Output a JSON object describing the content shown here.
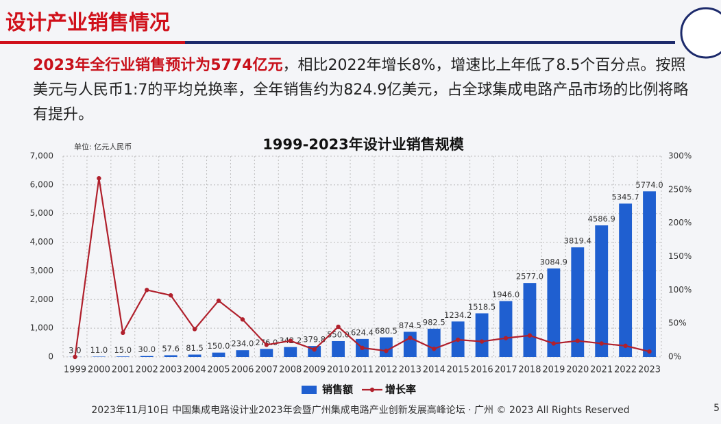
{
  "header": {
    "title": "设计产业销售情况"
  },
  "summary": {
    "highlight": "2023年全行业销售预计为5774亿元",
    "text": "，相比2022年增长8%，增速比上年低了8.5个百分点。按照美元与人民币1:7的平均兑换率，全年销售约为824.9亿美元，占全球集成电路产品市场的比例将略有提升。"
  },
  "chart_data": {
    "type": "bar",
    "title": "1999-2023年设计业销售规模",
    "unit_note": "单位: 亿元人民币",
    "categories": [
      "1999",
      "2000",
      "2001",
      "2002",
      "2003",
      "2004",
      "2005",
      "2006",
      "2007",
      "2008",
      "2009",
      "2010",
      "2011",
      "2012",
      "2013",
      "2014",
      "2015",
      "2016",
      "2017",
      "2018",
      "2019",
      "2020",
      "2021",
      "2022",
      "2023"
    ],
    "series": [
      {
        "name": "销售额",
        "type": "bar",
        "color": "#1f5fd0",
        "values": [
          3,
          11,
          15,
          30,
          57.6,
          81.5,
          150,
          234,
          276,
          342.2,
          379.8,
          550,
          624.4,
          680.5,
          874.5,
          982.5,
          1234.2,
          1518.5,
          1946,
          2577,
          3084.9,
          3819.4,
          4586.9,
          5345.7,
          5774
        ],
        "value_labels": [
          "3.0",
          "11.0",
          "15.0",
          "30.0",
          "57.6",
          "81.5",
          "150.0",
          "234.0",
          "276.0",
          "342.2",
          "379.8",
          "550.0",
          "624.4",
          "680.5",
          "874.5",
          "982.5",
          "1234.2",
          "1518.5",
          "1946.0",
          "2577.0",
          "3084.9",
          "3819.4",
          "4586.9",
          "5345.7",
          "5774.0"
        ]
      },
      {
        "name": "增长率",
        "type": "line",
        "axis": "y2",
        "color": "#b0202c",
        "values": [
          0,
          267,
          36,
          100,
          92,
          41.5,
          84,
          56,
          18,
          24,
          11,
          45,
          13.5,
          9,
          28.5,
          12,
          25.6,
          23,
          28,
          32,
          20,
          24,
          20,
          16.5,
          8
        ]
      }
    ],
    "ylim": [
      0,
      7000
    ],
    "yticks": [
      0,
      {
        "value": 1000,
        "label": "1,000"
      },
      {
        "value": 2000,
        "label": "2,000"
      },
      {
        "value": 3000,
        "label": "3,000"
      },
      {
        "value": 4000,
        "label": "4,000"
      },
      {
        "value": 5000,
        "label": "5,000"
      },
      {
        "value": 6000,
        "label": "6,000"
      },
      {
        "value": 7000,
        "label": "7,000"
      }
    ],
    "y2lim": [
      0,
      300
    ],
    "y2ticks": [
      {
        "value": 0,
        "label": "0%"
      },
      {
        "value": 50,
        "label": "50%"
      },
      {
        "value": 100,
        "label": "100%"
      },
      {
        "value": 150,
        "label": "150%"
      },
      {
        "value": 200,
        "label": "200%"
      },
      {
        "value": 250,
        "label": "250%"
      },
      {
        "value": 300,
        "label": "300%"
      }
    ],
    "grid": true,
    "legend": "bottom"
  },
  "footer": {
    "text": "2023年11月10日 中国集成电路设计业2023年会暨广州集成电路产业创新发展高峰论坛 · 广州 © 2023 All Rights Reserved",
    "page_number": "5"
  }
}
